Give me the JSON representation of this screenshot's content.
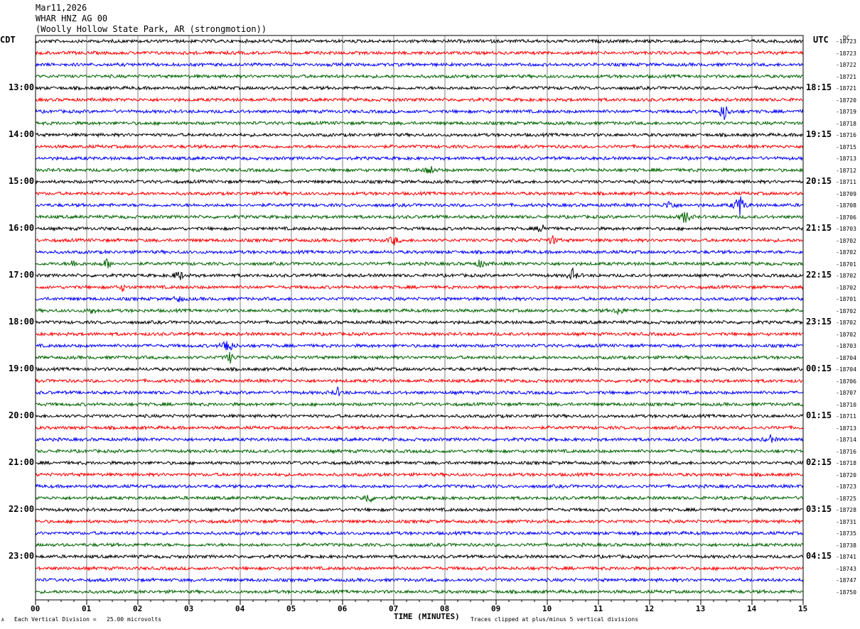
{
  "header": {
    "date": "Mar11,2026",
    "station": "WHAR HNZ AG 00",
    "location": "(Woolly Hollow State Park, AR (strongmotion))"
  },
  "timezones": {
    "left": "CDT",
    "right": "UTC"
  },
  "dc_label": "DC",
  "footer": {
    "scale_note": "Each Vertical Division =   25.00 microvolts",
    "xlabel": "TIME (MINUTES)",
    "clip_note": "Traces clipped at plus/minus 5 vertical divisions",
    "corner_mark": "A"
  },
  "colors": {
    "cycle": [
      "#000000",
      "#ff0000",
      "#0000ff",
      "#006400"
    ],
    "grid": "#808080"
  },
  "chart_data": {
    "type": "line",
    "title": "WHAR HNZ AG 00",
    "xlabel": "TIME (MINUTES)",
    "xlim": [
      0,
      15
    ],
    "x_ticks": [
      "00",
      "01",
      "02",
      "03",
      "04",
      "05",
      "06",
      "07",
      "08",
      "09",
      "10",
      "11",
      "12",
      "13",
      "14",
      "15"
    ],
    "rows_per_hour": 4,
    "left_hour_labels": [
      "13:00",
      "14:00",
      "15:00",
      "16:00",
      "17:00",
      "18:00",
      "19:00",
      "20:00",
      "21:00",
      "22:00",
      "23:00"
    ],
    "right_hour_labels": [
      "18:15",
      "19:15",
      "20:15",
      "21:15",
      "22:15",
      "23:15",
      "00:15",
      "01:15",
      "02:15",
      "03:15",
      "04:15"
    ],
    "hour_label_first_row": 4,
    "dc_offsets": [
      "-18723",
      "-18723",
      "-18722",
      "-18721",
      "-18721",
      "-18720",
      "-18719",
      "-18718",
      "-18716",
      "-18715",
      "-18713",
      "-18712",
      "-18711",
      "-18709",
      "-18708",
      "-18706",
      "-18703",
      "-18702",
      "-18702",
      "-18701",
      "-18702",
      "-18702",
      "-18701",
      "-18702",
      "-18702",
      "-18702",
      "-18703",
      "-18704",
      "-18704",
      "-18706",
      "-18707",
      "-18710",
      "-18711",
      "-18713",
      "-18714",
      "-18716",
      "-18718",
      "-18720",
      "-18723",
      "-18725",
      "-18728",
      "-18731",
      "-18735",
      "-18738",
      "-18741",
      "-18743",
      "-18747",
      "-18750"
    ],
    "events": [
      {
        "row": 6,
        "minute": 13.45,
        "amp": 1.0
      },
      {
        "row": 11,
        "minute": 7.7,
        "amp": 0.5
      },
      {
        "row": 14,
        "minute": 12.4,
        "amp": 0.6
      },
      {
        "row": 14,
        "minute": 13.75,
        "amp": 1.4
      },
      {
        "row": 15,
        "minute": 12.7,
        "amp": 0.8
      },
      {
        "row": 16,
        "minute": 9.9,
        "amp": 0.5
      },
      {
        "row": 17,
        "minute": 7.0,
        "amp": 0.5
      },
      {
        "row": 17,
        "minute": 10.1,
        "amp": 0.5
      },
      {
        "row": 19,
        "minute": 0.75,
        "amp": 0.4
      },
      {
        "row": 19,
        "minute": 1.4,
        "amp": 0.5
      },
      {
        "row": 19,
        "minute": 8.7,
        "amp": 0.4
      },
      {
        "row": 20,
        "minute": 2.8,
        "amp": 0.6
      },
      {
        "row": 20,
        "minute": 10.5,
        "amp": 0.6
      },
      {
        "row": 21,
        "minute": 1.7,
        "amp": 0.3
      },
      {
        "row": 22,
        "minute": 2.8,
        "amp": 0.3
      },
      {
        "row": 23,
        "minute": 1.1,
        "amp": 0.3
      },
      {
        "row": 23,
        "minute": 11.4,
        "amp": 0.4
      },
      {
        "row": 26,
        "minute": 3.75,
        "amp": 1.1
      },
      {
        "row": 27,
        "minute": 3.8,
        "amp": 0.5
      },
      {
        "row": 30,
        "minute": 5.9,
        "amp": 0.4
      },
      {
        "row": 34,
        "minute": 14.35,
        "amp": 0.4
      },
      {
        "row": 39,
        "minute": 6.5,
        "amp": 0.6
      }
    ]
  }
}
